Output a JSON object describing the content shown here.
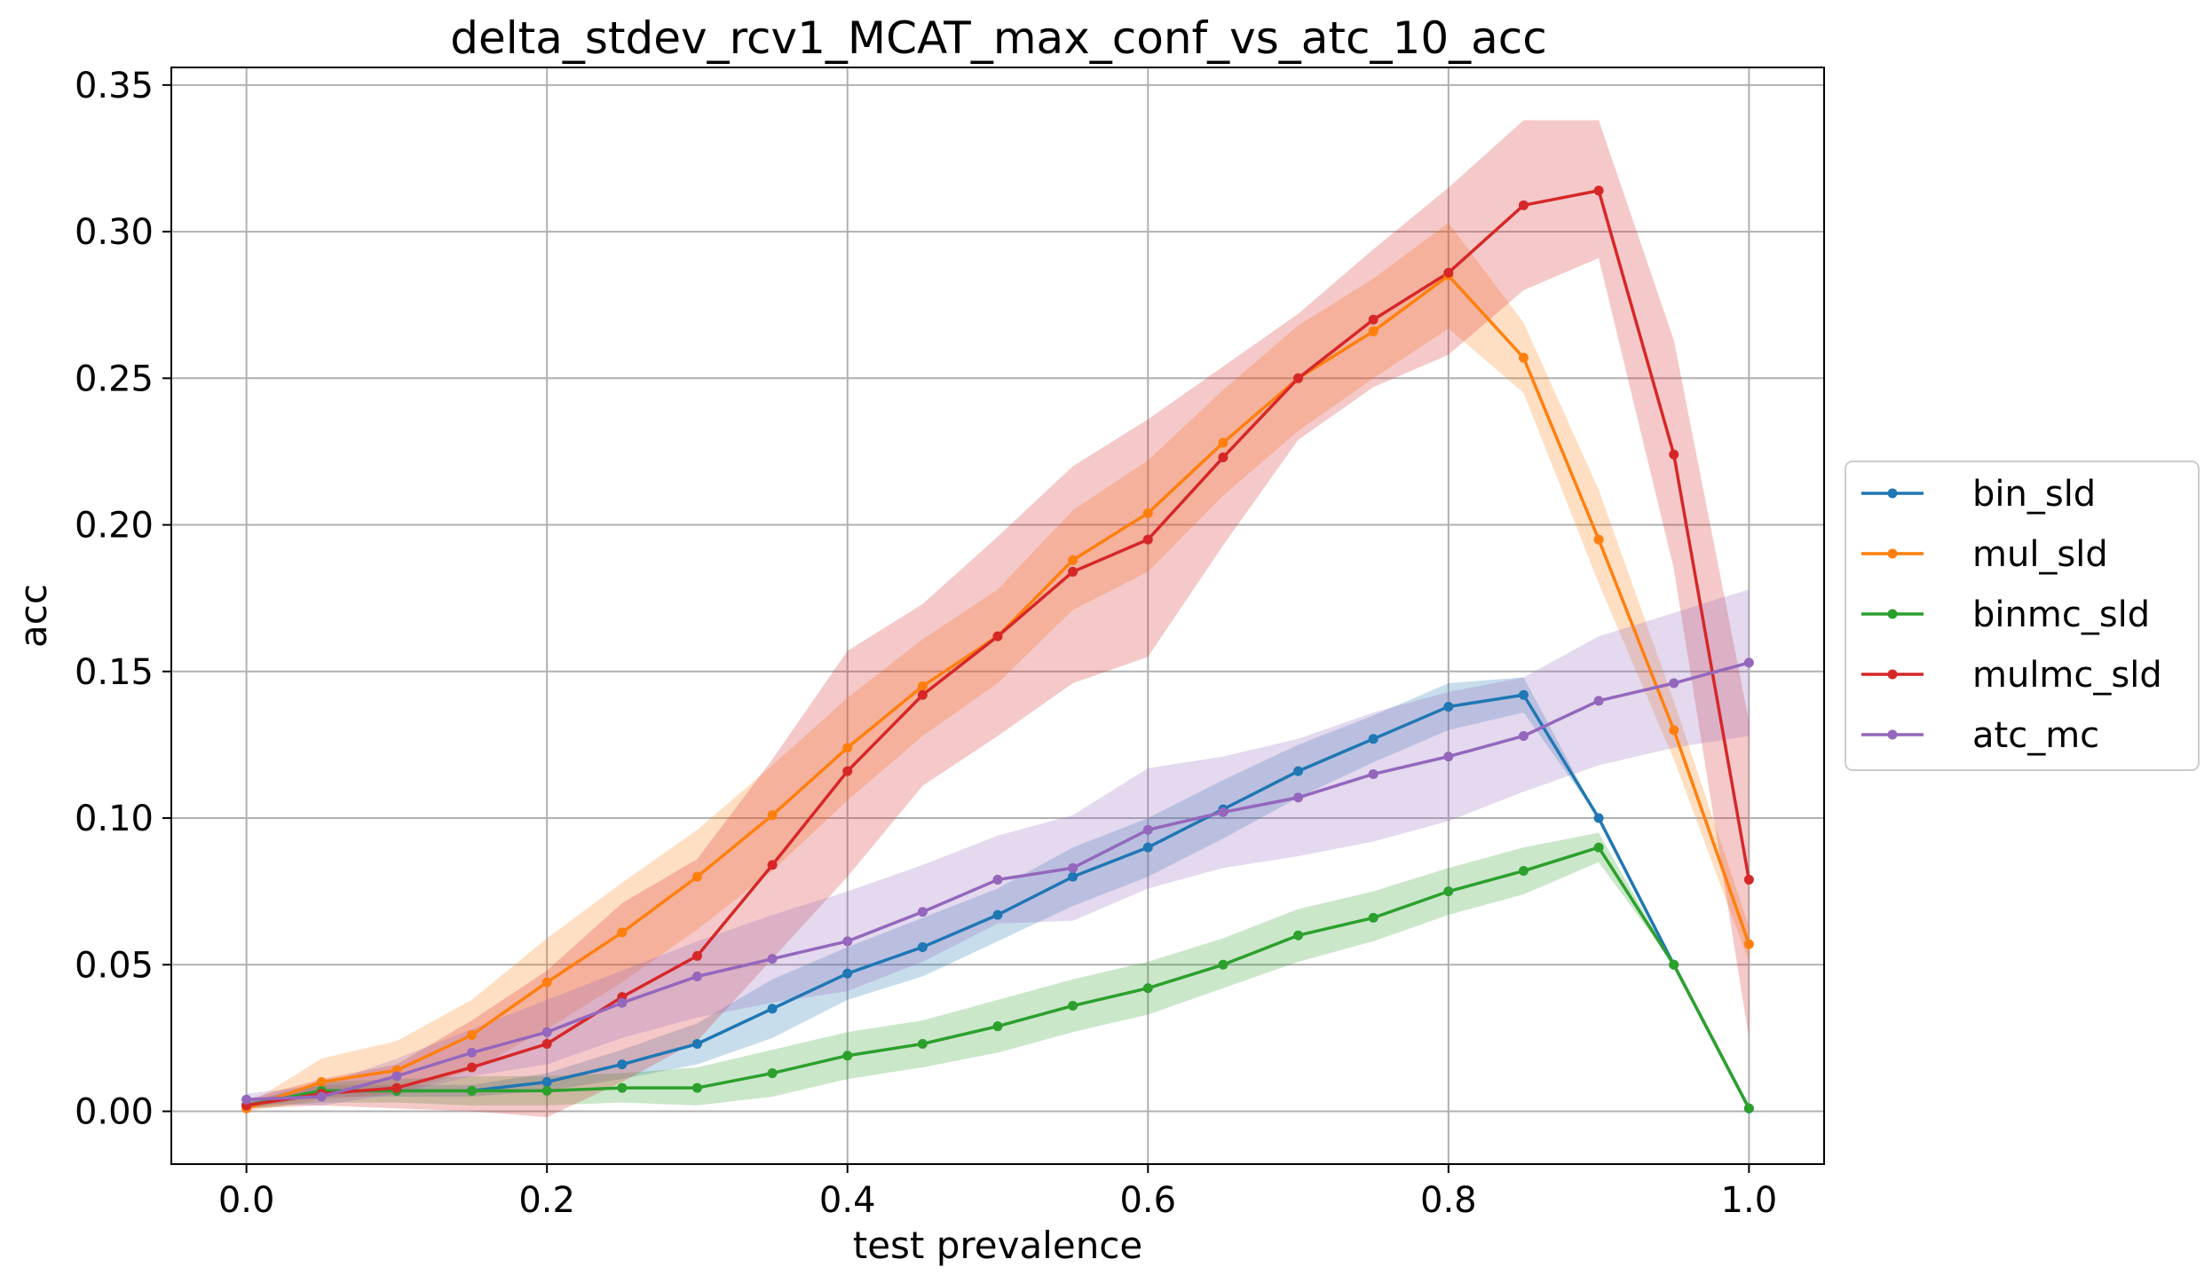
{
  "chart_data": {
    "type": "line",
    "title": "delta_stdev_rcv1_MCAT_max_conf_vs_atc_10_acc",
    "xlabel": "test prevalence",
    "ylabel": "acc",
    "xlim": [
      -0.05,
      1.05
    ],
    "ylim": [
      -0.018,
      0.356
    ],
    "xticks": [
      "0.0",
      "0.2",
      "0.4",
      "0.6",
      "0.8",
      "1.0"
    ],
    "yticks": [
      "0.00",
      "0.05",
      "0.10",
      "0.15",
      "0.20",
      "0.25",
      "0.30",
      "0.35"
    ],
    "grid": true,
    "legend_position": "right, outside plot",
    "x": [
      0.0,
      0.05,
      0.1,
      0.15,
      0.2,
      0.25,
      0.3,
      0.35,
      0.4,
      0.45,
      0.5,
      0.55,
      0.6,
      0.65,
      0.7,
      0.75,
      0.8,
      0.85,
      0.9,
      0.95,
      1.0
    ],
    "series": [
      {
        "name": "bin_sld",
        "color": "#1f77b4",
        "values": [
          0.002,
          0.007,
          0.007,
          0.007,
          0.01,
          0.016,
          0.023,
          0.035,
          0.047,
          0.056,
          0.067,
          0.08,
          0.09,
          0.103,
          0.116,
          0.127,
          0.138,
          0.142,
          0.1,
          0.05,
          0.001
        ],
        "lower": [
          0.001,
          0.005,
          0.005,
          0.005,
          0.007,
          0.011,
          0.016,
          0.025,
          0.038,
          0.046,
          0.058,
          0.07,
          0.08,
          0.093,
          0.107,
          0.119,
          0.13,
          0.136,
          0.1,
          0.05,
          0.001
        ],
        "upper": [
          0.003,
          0.009,
          0.009,
          0.009,
          0.013,
          0.021,
          0.03,
          0.045,
          0.056,
          0.066,
          0.076,
          0.09,
          0.1,
          0.113,
          0.125,
          0.135,
          0.146,
          0.148,
          0.1,
          0.05,
          0.001
        ]
      },
      {
        "name": "mul_sld",
        "color": "#ff7f0e",
        "values": [
          0.001,
          0.01,
          0.014,
          0.026,
          0.044,
          0.061,
          0.08,
          0.101,
          0.124,
          0.145,
          0.162,
          0.188,
          0.204,
          0.228,
          0.25,
          0.266,
          0.285,
          0.257,
          0.195,
          0.13,
          0.057
        ],
        "lower": [
          0.0,
          0.004,
          0.006,
          0.014,
          0.028,
          0.044,
          0.062,
          0.082,
          0.106,
          0.128,
          0.146,
          0.171,
          0.184,
          0.21,
          0.232,
          0.25,
          0.267,
          0.245,
          0.18,
          0.12,
          0.051
        ],
        "upper": [
          0.002,
          0.018,
          0.024,
          0.038,
          0.059,
          0.078,
          0.096,
          0.118,
          0.141,
          0.161,
          0.178,
          0.205,
          0.222,
          0.246,
          0.268,
          0.284,
          0.303,
          0.269,
          0.212,
          0.14,
          0.063
        ]
      },
      {
        "name": "binmc_sld",
        "color": "#2ca02c",
        "values": [
          0.002,
          0.007,
          0.007,
          0.007,
          0.007,
          0.008,
          0.008,
          0.013,
          0.019,
          0.023,
          0.029,
          0.036,
          0.042,
          0.05,
          0.06,
          0.066,
          0.075,
          0.082,
          0.09,
          0.05,
          0.001
        ],
        "lower": [
          0.001,
          0.003,
          0.003,
          0.002,
          0.002,
          0.003,
          0.002,
          0.005,
          0.011,
          0.015,
          0.02,
          0.027,
          0.033,
          0.042,
          0.051,
          0.058,
          0.067,
          0.074,
          0.085,
          0.05,
          0.001
        ],
        "upper": [
          0.003,
          0.01,
          0.011,
          0.012,
          0.012,
          0.013,
          0.015,
          0.021,
          0.027,
          0.031,
          0.038,
          0.045,
          0.051,
          0.059,
          0.069,
          0.075,
          0.083,
          0.09,
          0.095,
          0.05,
          0.001
        ]
      },
      {
        "name": "mulmc_sld",
        "color": "#d62728",
        "values": [
          0.002,
          0.006,
          0.008,
          0.015,
          0.023,
          0.039,
          0.053,
          0.084,
          0.116,
          0.142,
          0.162,
          0.184,
          0.195,
          0.223,
          0.25,
          0.27,
          0.286,
          0.309,
          0.314,
          0.224,
          0.079
        ],
        "lower": [
          0.001,
          0.002,
          0.001,
          0.0,
          -0.002,
          0.01,
          0.024,
          0.052,
          0.08,
          0.111,
          0.128,
          0.146,
          0.155,
          0.193,
          0.229,
          0.247,
          0.258,
          0.28,
          0.291,
          0.185,
          0.025
        ],
        "upper": [
          0.004,
          0.011,
          0.016,
          0.031,
          0.048,
          0.071,
          0.086,
          0.12,
          0.157,
          0.173,
          0.196,
          0.22,
          0.236,
          0.254,
          0.272,
          0.294,
          0.315,
          0.338,
          0.338,
          0.263,
          0.133
        ]
      },
      {
        "name": "atc_mc",
        "color": "#9467bd",
        "values": [
          0.004,
          0.005,
          0.012,
          0.02,
          0.027,
          0.037,
          0.046,
          0.052,
          0.058,
          0.068,
          0.079,
          0.083,
          0.096,
          0.102,
          0.107,
          0.115,
          0.121,
          0.128,
          0.14,
          0.146,
          0.153
        ],
        "lower": [
          0.003,
          0.002,
          0.006,
          0.012,
          0.016,
          0.025,
          0.032,
          0.037,
          0.041,
          0.051,
          0.064,
          0.065,
          0.076,
          0.083,
          0.087,
          0.092,
          0.099,
          0.109,
          0.118,
          0.124,
          0.128
        ],
        "upper": [
          0.006,
          0.009,
          0.018,
          0.028,
          0.038,
          0.048,
          0.058,
          0.067,
          0.075,
          0.084,
          0.094,
          0.101,
          0.117,
          0.121,
          0.127,
          0.136,
          0.143,
          0.148,
          0.162,
          0.17,
          0.178
        ]
      }
    ]
  }
}
